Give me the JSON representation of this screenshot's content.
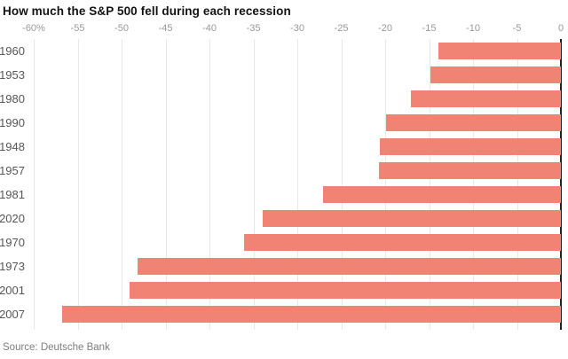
{
  "header": {
    "title": "How much the S&P 500 fell during each recession"
  },
  "footer": {
    "source": "Source: Deutsche Bank"
  },
  "chart_data": {
    "type": "bar",
    "orientation": "horizontal",
    "title": "How much the S&P 500 fell during each recession",
    "xlabel": "",
    "ylabel": "",
    "unit": "%",
    "categories": [
      "1960",
      "1953",
      "1980",
      "1990",
      "1948",
      "1957",
      "1981",
      "2020",
      "1970",
      "1973",
      "2001",
      "2007"
    ],
    "values": [
      -13.9,
      -14.8,
      -17.1,
      -19.9,
      -20.6,
      -20.7,
      -27.1,
      -33.9,
      -36.1,
      -48.2,
      -49.1,
      -56.8
    ],
    "xlim": [
      -60,
      0
    ],
    "xticks": [
      {
        "value": -60,
        "label": "-60%"
      },
      {
        "value": -55,
        "label": "-55"
      },
      {
        "value": -50,
        "label": "-50"
      },
      {
        "value": -45,
        "label": "-45"
      },
      {
        "value": -40,
        "label": "-40"
      },
      {
        "value": -35,
        "label": "-35"
      },
      {
        "value": -30,
        "label": "-30"
      },
      {
        "value": -25,
        "label": "-25"
      },
      {
        "value": -20,
        "label": "-20"
      },
      {
        "value": -15,
        "label": "-15"
      },
      {
        "value": -10,
        "label": "-10"
      },
      {
        "value": -5,
        "label": "-5"
      },
      {
        "value": 0,
        "label": "0"
      }
    ],
    "grid": true,
    "legend": false,
    "source": "Source: Deutsche Bank",
    "colors": {
      "bar": "#f08374",
      "gridline": "#e8e8e8",
      "zero_axis": "#222222",
      "tick_label": "#999999",
      "category_label": "#565656",
      "title": "#121212",
      "source": "#7d7d7d"
    }
  }
}
